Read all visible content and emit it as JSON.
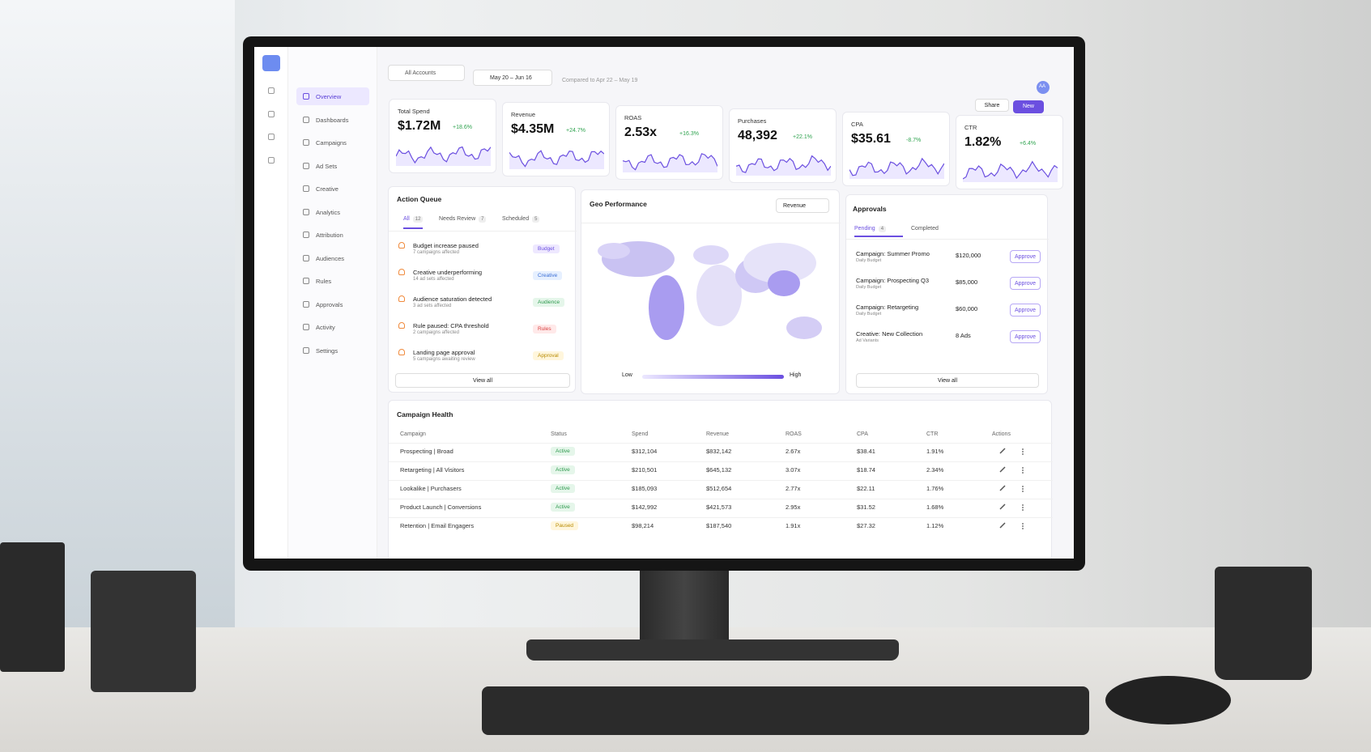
{
  "sidebar": {
    "nav": [
      "Overview",
      "Dashboards",
      "Campaigns",
      "Ad Sets",
      "Creative",
      "Analytics",
      "Attribution",
      "Audiences",
      "Rules",
      "Approvals",
      "Activity",
      "Settings"
    ]
  },
  "toolbar": {
    "account": "All Accounts",
    "date_range": "May 20 – Jun 16",
    "compare": "Compared to Apr 22 – May 19",
    "avatar": "AA",
    "share": "Share",
    "new": "New"
  },
  "kpis": [
    {
      "label": "Total Spend",
      "value": "$1.72M",
      "change": "+18.6%"
    },
    {
      "label": "Revenue",
      "value": "$4.35M",
      "change": "+24.7%"
    },
    {
      "label": "ROAS",
      "value": "2.53x",
      "change": "+16.3%"
    },
    {
      "label": "Purchases",
      "value": "48,392",
      "change": "+22.1%"
    },
    {
      "label": "CPA",
      "value": "$35.61",
      "change": "-8.7%"
    },
    {
      "label": "CTR",
      "value": "1.82%",
      "change": "+6.4%"
    }
  ],
  "action_queue": {
    "title": "Action Queue",
    "tabs": [
      {
        "label": "All",
        "count": "12"
      },
      {
        "label": "Needs Review",
        "count": "7"
      },
      {
        "label": "Scheduled",
        "count": "5"
      }
    ],
    "items": [
      {
        "title": "Budget increase paused",
        "subtitle": "7 campaigns affected",
        "tag": "Budget"
      },
      {
        "title": "Creative underperforming",
        "subtitle": "14 ad sets affected",
        "tag": "Creative"
      },
      {
        "title": "Audience saturation detected",
        "subtitle": "3 ad sets affected",
        "tag": "Audience"
      },
      {
        "title": "Rule paused: CPA threshold",
        "subtitle": "2 campaigns affected",
        "tag": "Rules"
      },
      {
        "title": "Landing page approval",
        "subtitle": "5 campaigns awaiting review",
        "tag": "Approval"
      }
    ],
    "view_all": "View all"
  },
  "geo": {
    "title": "Geo Performance",
    "metric": "Revenue",
    "legend_low": "Low",
    "legend_high": "High"
  },
  "approvals": {
    "title": "Approvals",
    "tabs": [
      {
        "label": "Pending",
        "count": "4"
      },
      {
        "label": "Completed"
      }
    ],
    "items": [
      {
        "title": "Campaign: Summer Promo",
        "subtitle": "Daily Budget",
        "amount": "$120,000"
      },
      {
        "title": "Campaign: Prospecting Q3",
        "subtitle": "Daily Budget",
        "amount": "$85,000"
      },
      {
        "title": "Campaign: Retargeting",
        "subtitle": "Daily Budget",
        "amount": "$60,000"
      },
      {
        "title": "Creative: New Collection",
        "subtitle": "Ad Variants",
        "amount": "8 Ads"
      }
    ],
    "action": "Approve",
    "view_all": "View all"
  },
  "campaign_health": {
    "title": "Campaign Health",
    "columns": [
      "Campaign",
      "Status",
      "Spend",
      "Revenue",
      "ROAS",
      "CPA",
      "CTR",
      "Actions"
    ],
    "rows": [
      [
        "Prospecting | Broad",
        "Active",
        "$312,104",
        "$832,142",
        "2.67x",
        "$38.41",
        "1.91%"
      ],
      [
        "Retargeting | All Visitors",
        "Active",
        "$210,501",
        "$645,132",
        "3.07x",
        "$18.74",
        "2.34%"
      ],
      [
        "Lookalike | Purchasers",
        "Active",
        "$185,093",
        "$512,654",
        "2.77x",
        "$22.11",
        "1.76%"
      ],
      [
        "Product Launch | Conversions",
        "Active",
        "$142,992",
        "$421,573",
        "2.95x",
        "$31.52",
        "1.68%"
      ],
      [
        "Retention | Email Engagers",
        "Paused",
        "$98,214",
        "$187,540",
        "1.91x",
        "$27.32",
        "1.12%"
      ]
    ]
  }
}
